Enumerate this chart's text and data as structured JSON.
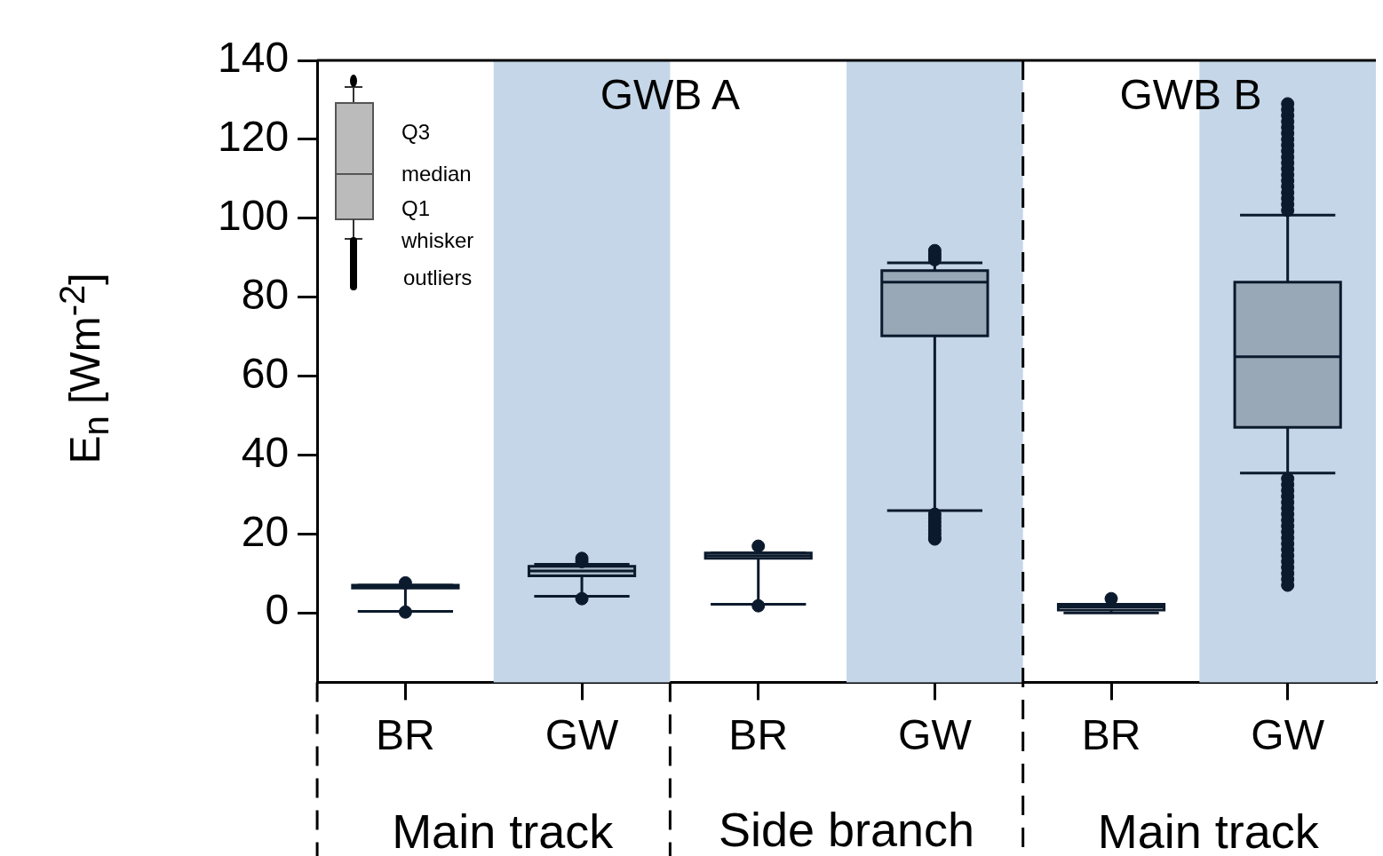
{
  "chart_data": {
    "type": "box",
    "ylabel": "E$_{n}$ [Wm$^{-2}$]",
    "categories": [
      "BR",
      "GW",
      "BR",
      "GW",
      "BR",
      "GW"
    ],
    "colors": [
      "#f2f2f2",
      "#a9b9c8",
      "#ffffff",
      "#98a8b6",
      "#f2f2f2",
      "#98a8b6"
    ],
    "boxes": [
      {
        "low": 0.4,
        "q1": 6.3,
        "median": 6.6,
        "q3": 7.0,
        "high": 7.0,
        "outliers": [
          7.6,
          0.2
        ]
      },
      {
        "low": 4.2,
        "q1": 9.4,
        "median": 10.6,
        "q3": 11.8,
        "high": 12.3,
        "outliers": [
          13.0,
          13.8,
          3.6
        ]
      },
      {
        "low": 2.2,
        "q1": 13.8,
        "median": 14.5,
        "q3": 15.2,
        "high": 15.2,
        "outliers": [
          16.9,
          1.8
        ]
      },
      {
        "low": 25.9,
        "q1": 70.2,
        "median": 83.8,
        "q3": 86.7,
        "high": 88.7,
        "outliers": [
          89.5,
          90.3,
          91.0,
          91.8,
          25.0,
          24.0,
          23.0,
          22.0,
          21.0,
          20.0,
          19.0,
          18.7
        ]
      },
      {
        "low": 0.0,
        "q1": 0.7,
        "median": 1.5,
        "q3": 2.2,
        "high": 2.2,
        "outliers": [
          3.6
        ]
      },
      {
        "low": 35.4,
        "q1": 47.0,
        "median": 64.9,
        "q3": 83.8,
        "high": 100.8,
        "outliers": [
          102,
          103.5,
          105,
          106.5,
          108,
          109.5,
          111,
          112.5,
          114,
          115.5,
          117,
          118.5,
          120,
          121.5,
          123,
          124.5,
          126,
          127.5,
          129,
          34,
          32.5,
          31,
          29.5,
          28,
          26.5,
          25,
          23.5,
          22,
          20.5,
          19,
          17.5,
          16,
          14.5,
          13,
          11.5,
          10,
          8.5,
          7
        ]
      }
    ],
    "ylim": [
      -17.6,
      140
    ],
    "yticks": [
      0,
      20,
      40,
      60,
      80,
      100,
      120,
      140
    ],
    "grid": false,
    "legend": false,
    "marker": "circle",
    "annotations": [
      "GWB A",
      "GWB B",
      "Q3",
      "median",
      "Q1",
      "whisker",
      "outliers",
      "Main track",
      "Side branch",
      "Main track"
    ]
  }
}
